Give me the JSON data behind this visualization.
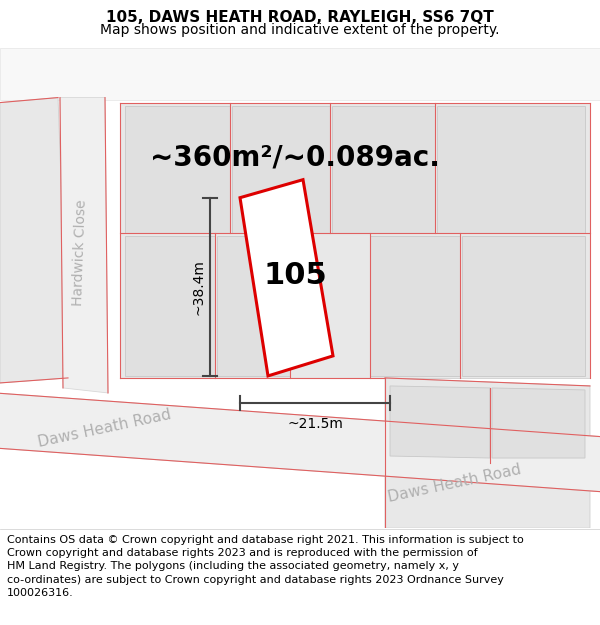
{
  "title": "105, DAWS HEATH ROAD, RAYLEIGH, SS6 7QT",
  "subtitle": "Map shows position and indicative extent of the property.",
  "footer": "Contains OS data © Crown copyright and database right 2021. This information is subject to\nCrown copyright and database rights 2023 and is reproduced with the permission of\nHM Land Registry. The polygons (including the associated geometry, namely x, y\nco-ordinates) are subject to Crown copyright and database rights 2023 Ordnance Survey\n100026316.",
  "area_label": "~360m²/~0.089ac.",
  "width_label": "~21.5m",
  "height_label": "~38.4m",
  "number_label": "105",
  "title_fontsize": 11,
  "subtitle_fontsize": 10,
  "area_fontsize": 20,
  "number_fontsize": 22,
  "dim_fontsize": 10,
  "road_label_fontsize": 11,
  "footer_fontsize": 8.0,
  "map_bg": "#f5f5f5",
  "block_fill": "#e8e8e8",
  "block_edge": "#d0d0d0",
  "road_fill": "#f0f0f0",
  "parcel_fill": "#e0e0e0",
  "parcel_edge": "#c8c8c8",
  "red_line_color": "#e06060",
  "prop_edge": "#dd0000",
  "prop_fill": "#ffffff",
  "dim_color": "#444444",
  "road_text_color": "#b0b0b0",
  "red_lw": 0.8,
  "prop_lw": 2.2
}
